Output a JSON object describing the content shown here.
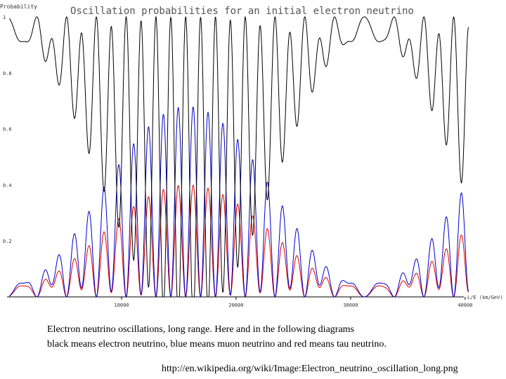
{
  "chart_data": {
    "type": "line",
    "title": "Oscillation probabilities for an initial electron neutrino",
    "ylabel": "Probability",
    "xlabel": "L/E (km/GeV)",
    "xlim": [
      0,
      40500
    ],
    "ylim": [
      0,
      1
    ],
    "x_ticks": [
      10000,
      20000,
      30000,
      40000
    ],
    "x_tick_labels": [
      "10000",
      "20000",
      "30000",
      "40000"
    ],
    "y_ticks": [
      0.2,
      0.4,
      0.6,
      0.8,
      1
    ],
    "y_tick_labels": [
      "0.2",
      "0.4",
      "0.6",
      "0.8",
      "1"
    ],
    "grid": false,
    "model": {
      "slow_period": 31500,
      "fast_period": 1300,
      "samples": 1400,
      "note": "curves computed from P_mu = 0.7*Sslow*Sfast + 0.03*Sfast_short ; P_tau = 0.4*Sslow*Sfast + 0.02*Sfast_short ; P_e = 1 - P_mu - P_tau"
    },
    "series": [
      {
        "name": "electron neutrino",
        "color": "#000000",
        "key": "e"
      },
      {
        "name": "muon neutrino",
        "color": "#0000cc",
        "key": "mu"
      },
      {
        "name": "tau neutrino",
        "color": "#dd0000",
        "key": "tau"
      }
    ]
  },
  "caption": {
    "line1": "Electron neutrino oscillations, long range. Here and in the following diagrams",
    "line2": "black means electron neutrino, blue means muon neutrino and red means tau neutrino."
  },
  "source": "http://en.wikipedia.org/wiki/Image:Electron_neutrino_oscillation_long.png"
}
